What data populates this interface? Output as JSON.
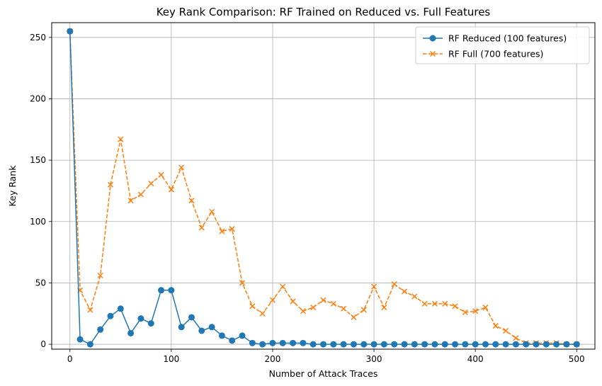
{
  "chart_data": {
    "type": "line",
    "title": "Key Rank Comparison: RF Trained on Reduced vs. Full Features",
    "xlabel": "Number of Attack Traces",
    "ylabel": "Key Rank",
    "xlim": [
      -18,
      518
    ],
    "ylim": [
      -4,
      262
    ],
    "xticks": [
      0,
      100,
      200,
      300,
      400,
      500
    ],
    "yticks": [
      0,
      50,
      100,
      150,
      200,
      250
    ],
    "grid": true,
    "legend_position": "upper right",
    "x": [
      0,
      10,
      20,
      30,
      40,
      50,
      60,
      70,
      80,
      90,
      100,
      110,
      120,
      130,
      140,
      150,
      160,
      170,
      180,
      190,
      200,
      210,
      220,
      230,
      240,
      250,
      260,
      270,
      280,
      290,
      300,
      310,
      320,
      330,
      340,
      350,
      360,
      370,
      380,
      390,
      400,
      410,
      420,
      430,
      440,
      450,
      460,
      470,
      480,
      490,
      500
    ],
    "series": [
      {
        "name": "RF Reduced (100 features)",
        "color": "#1f77b4",
        "linestyle": "solid",
        "marker": "circle",
        "values": [
          255,
          4,
          0,
          12,
          23,
          29,
          9,
          21,
          17,
          44,
          44,
          14,
          22,
          11,
          14,
          7,
          3,
          7,
          1,
          0,
          1,
          1,
          1,
          1,
          0,
          0,
          0,
          0,
          0,
          0,
          0,
          0,
          0,
          0,
          0,
          0,
          0,
          0,
          0,
          0,
          0,
          0,
          0,
          0,
          0,
          0,
          0,
          0,
          0,
          0,
          0
        ]
      },
      {
        "name": "RF Full (700 features)",
        "color": "#ff7f0e",
        "linestyle": "dashed",
        "marker": "x",
        "values": [
          255,
          44,
          28,
          56,
          130,
          167,
          117,
          122,
          131,
          138,
          126,
          144,
          117,
          95,
          108,
          92,
          94,
          50,
          31,
          25,
          36,
          47,
          35,
          27,
          30,
          36,
          33,
          29,
          22,
          28,
          47,
          30,
          49,
          43,
          39,
          33,
          33,
          33,
          31,
          26,
          27,
          30,
          15,
          11,
          5,
          1,
          1,
          1,
          1,
          0,
          0
        ]
      }
    ]
  }
}
